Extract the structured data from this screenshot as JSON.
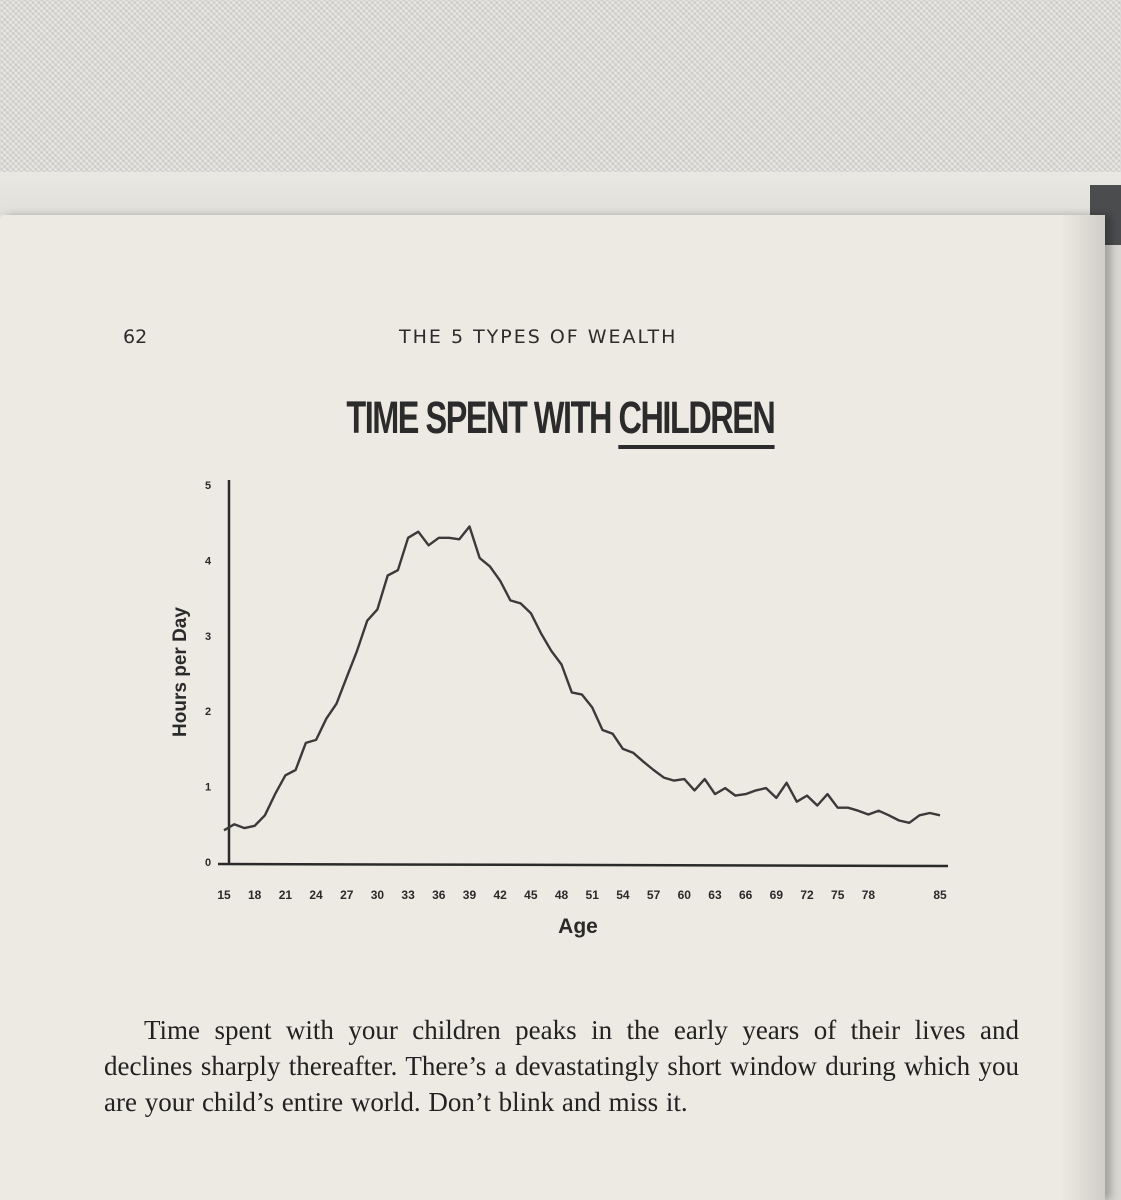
{
  "book": {
    "page_number": "62",
    "running_title": "THE 5 TYPES OF WEALTH"
  },
  "heading": {
    "text_start": "TIME SPENT WITH ",
    "text_underlined": "CHILDREN"
  },
  "caption": "Time spent with your children peaks in the early years of their lives and declines sharply thereafter. There’s a devastatingly short window during which you are your child’s entire world. Don’t blink and miss it.",
  "chart_data": {
    "type": "line",
    "title": "TIME SPENT WITH CHILDREN",
    "xlabel": "Age",
    "ylabel": "Hours per Day",
    "xlim": [
      15,
      85
    ],
    "ylim": [
      0,
      5
    ],
    "x_ticks": [
      15,
      18,
      21,
      24,
      27,
      30,
      33,
      36,
      39,
      42,
      45,
      48,
      51,
      54,
      57,
      60,
      63,
      66,
      69,
      72,
      75,
      78,
      85
    ],
    "y_ticks": [
      0,
      1,
      2,
      3,
      4,
      5
    ],
    "grid": false,
    "series": [
      {
        "x": [
          15,
          16,
          17,
          18,
          19,
          20,
          21,
          22,
          23,
          24,
          25,
          26,
          27,
          28,
          29,
          30,
          31,
          32,
          33,
          34,
          35,
          36,
          37,
          38,
          39,
          40,
          41,
          42,
          43,
          44,
          45,
          46,
          47,
          48,
          49,
          50,
          51,
          52,
          53,
          54,
          55,
          56,
          57,
          58,
          59,
          60,
          61,
          62,
          63,
          64,
          65,
          66,
          67,
          68,
          69,
          70,
          71,
          72,
          73,
          74,
          75,
          76,
          77,
          78,
          79,
          80,
          81,
          82,
          83,
          84,
          85
        ],
        "y": [
          0.42,
          0.5,
          0.45,
          0.48,
          0.62,
          0.9,
          1.15,
          1.22,
          1.58,
          1.62,
          1.9,
          2.1,
          2.45,
          2.8,
          3.2,
          3.35,
          3.8,
          3.87,
          4.3,
          4.38,
          4.2,
          4.3,
          4.3,
          4.28,
          4.45,
          4.03,
          3.92,
          3.73,
          3.47,
          3.43,
          3.3,
          3.03,
          2.8,
          2.62,
          2.25,
          2.22,
          2.05,
          1.75,
          1.7,
          1.5,
          1.45,
          1.33,
          1.22,
          1.12,
          1.08,
          1.1,
          0.95,
          1.1,
          0.9,
          0.98,
          0.88,
          0.9,
          0.95,
          0.98,
          0.85,
          1.05,
          0.8,
          0.88,
          0.75,
          0.9,
          0.72,
          0.72,
          0.68,
          0.63,
          0.68,
          0.62,
          0.55,
          0.52,
          0.62,
          0.65,
          0.62
        ]
      }
    ]
  }
}
